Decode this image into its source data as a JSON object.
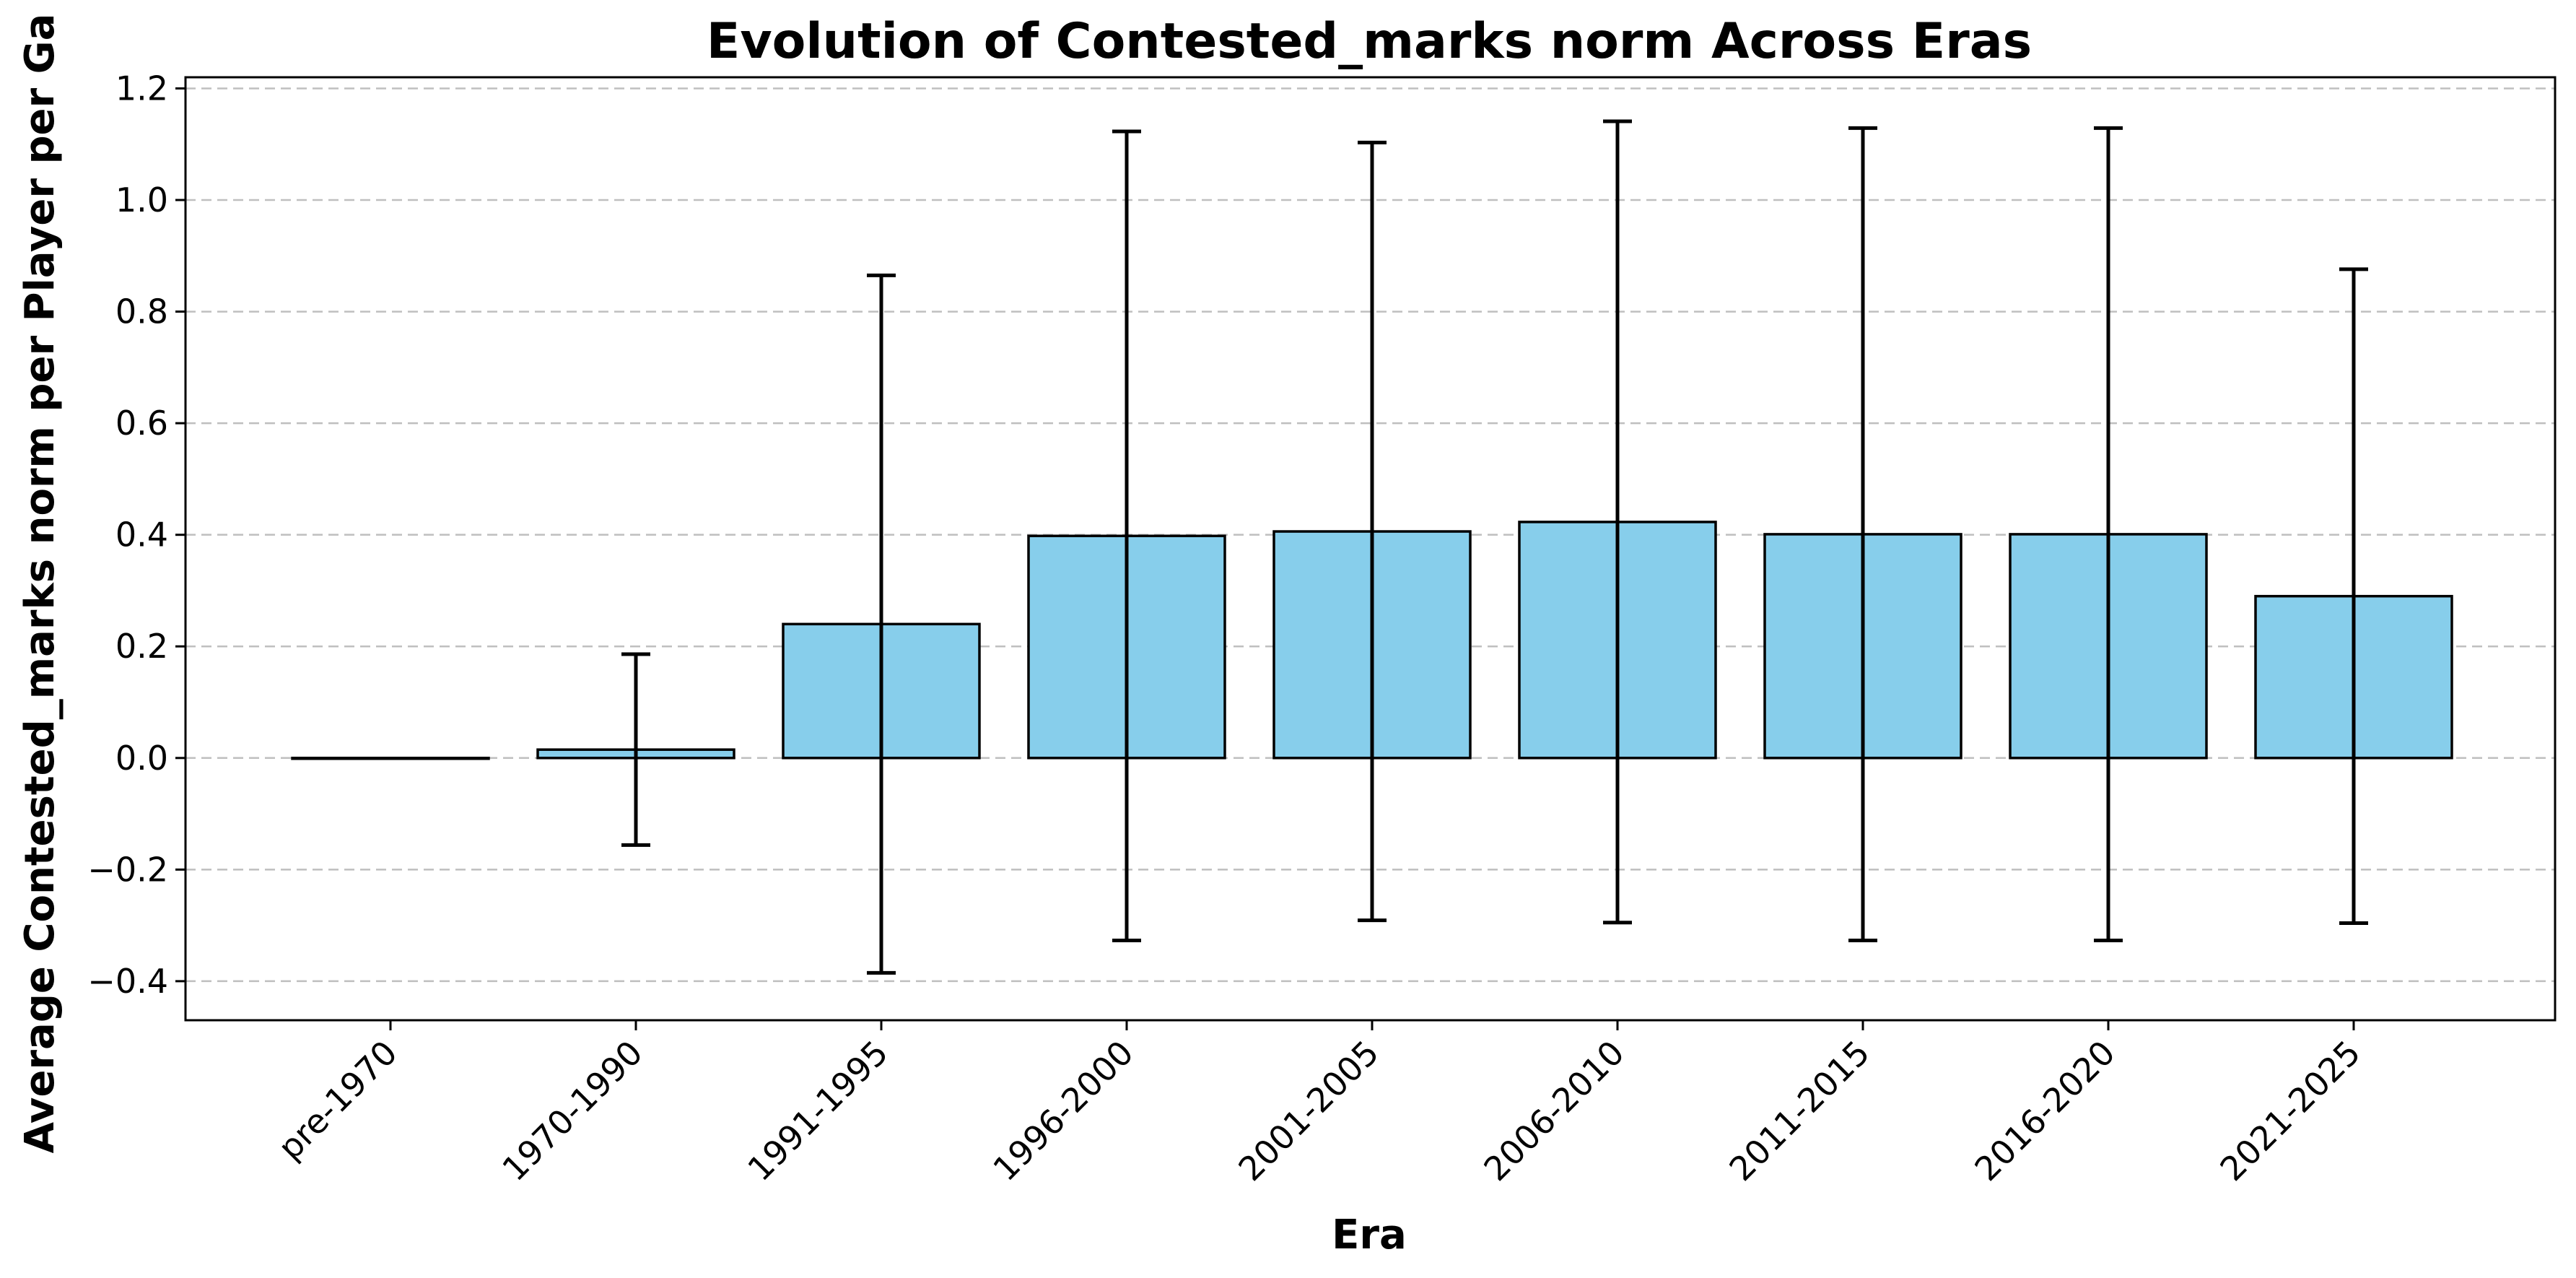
{
  "chart_data": {
    "type": "bar",
    "title": "Evolution of Contested_marks norm Across Eras",
    "xlabel": "Era",
    "ylabel": "Average Contested_marks norm per Player per Ga",
    "categories": [
      "pre-1970",
      "1970-1990",
      "1991-1995",
      "1996-2000",
      "2001-2005",
      "2006-2010",
      "2011-2015",
      "2016-2020",
      "2021-2025"
    ],
    "values": [
      0.0,
      0.015,
      0.24,
      0.398,
      0.406,
      0.423,
      0.401,
      0.401,
      0.29
    ],
    "error": [
      0.0,
      0.171,
      0.625,
      0.725,
      0.697,
      0.718,
      0.728,
      0.728,
      0.586
    ],
    "ylim": [
      -0.47,
      1.22
    ],
    "yticks": [
      -0.4,
      -0.2,
      0.0,
      0.2,
      0.4,
      0.6,
      0.8,
      1.0,
      1.2
    ],
    "ytick_labels": [
      "−0.4",
      "−0.2",
      "0.0",
      "0.2",
      "0.4",
      "0.6",
      "0.8",
      "1.0",
      "1.2"
    ],
    "grid": "y, dashed",
    "bar_color": "#87ceeb",
    "edge_color": "#000000"
  }
}
